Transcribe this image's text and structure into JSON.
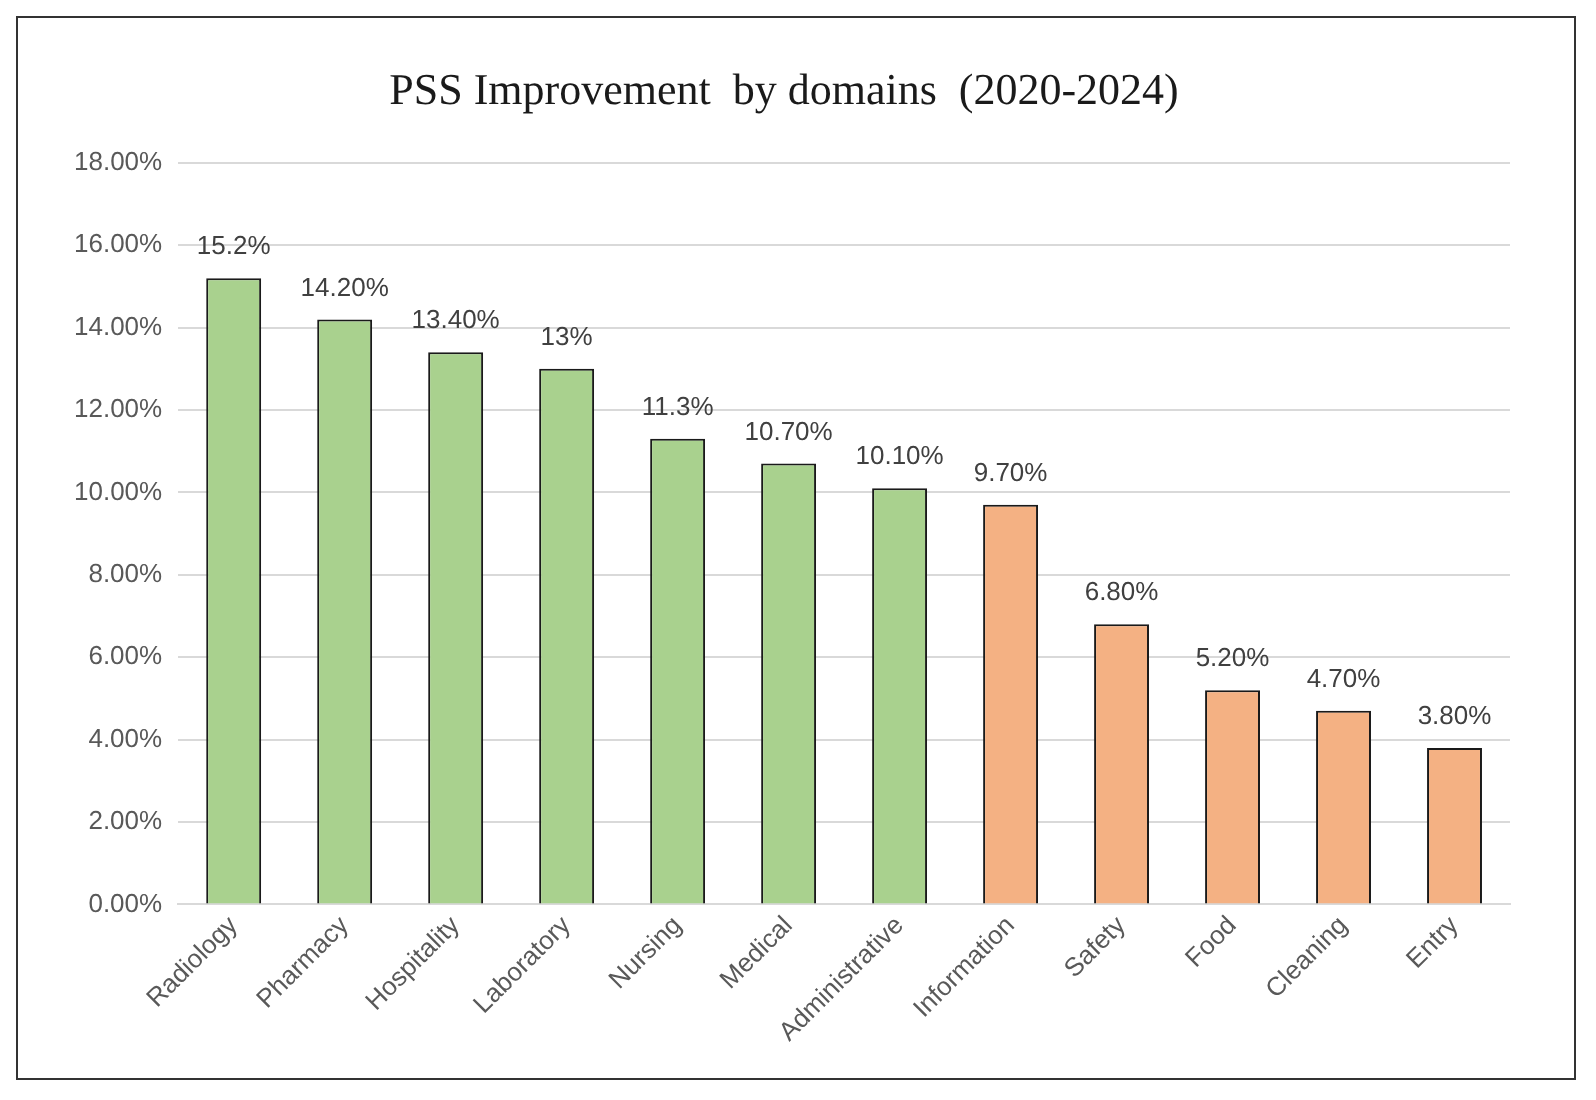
{
  "chart_data": {
    "type": "bar",
    "title": "PSS Improvement  by domains  (2020-2024)",
    "categories": [
      "Radiology",
      "Pharmacy",
      "Hospitality",
      "Laboratory",
      "Nursing",
      "Medical",
      "Administrative",
      "Information",
      "Safety",
      "Food",
      "Cleaning",
      "Entry"
    ],
    "values": [
      15.2,
      14.2,
      13.4,
      13,
      11.3,
      10.7,
      10.1,
      9.7,
      6.8,
      5.2,
      4.7,
      3.8
    ],
    "colors": [
      "#a9d18e",
      "#a9d18e",
      "#a9d18e",
      "#a9d18e",
      "#a9d18e",
      "#a9d18e",
      "#a9d18e",
      "#f4b183",
      "#f4b183",
      "#f4b183",
      "#f4b183",
      "#f4b183"
    ],
    "value_labels": [
      "15.2%",
      "14.20%",
      "13.40%",
      "13%",
      "11.3%",
      "10.70%",
      "10.10%",
      "9.70%",
      "6.80%",
      "5.20%",
      "4.70%",
      "3.80%"
    ],
    "ylim": [
      0,
      18
    ],
    "yticks": [
      {
        "value": 0,
        "label": "0.00%"
      },
      {
        "value": 2,
        "label": "2.00%"
      },
      {
        "value": 4,
        "label": "4.00%"
      },
      {
        "value": 6,
        "label": "6.00%"
      },
      {
        "value": 8,
        "label": "8.00%"
      },
      {
        "value": 10,
        "label": "10.00%"
      },
      {
        "value": 12,
        "label": "12.00%"
      },
      {
        "value": 14,
        "label": "14.00%"
      },
      {
        "value": 16,
        "label": "16.00%"
      },
      {
        "value": 18,
        "label": "18.00%"
      }
    ],
    "grid": "y",
    "legend": false
  }
}
